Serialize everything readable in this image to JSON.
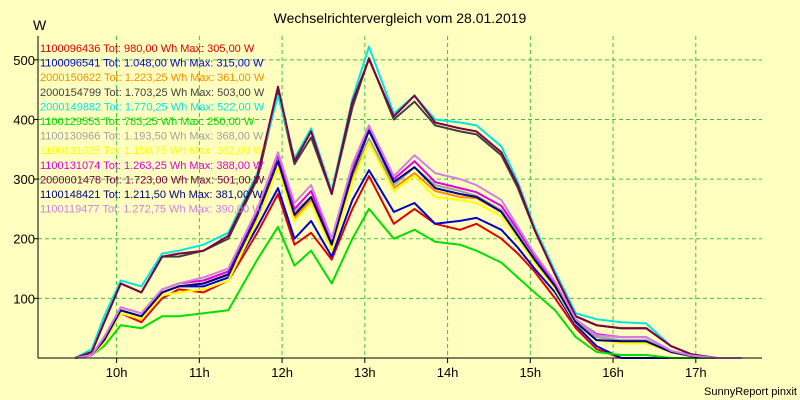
{
  "chart_data": {
    "type": "line",
    "title": "Wechselrichtervergleich vom 28.01.2019",
    "ylabel": "W",
    "xlabel": "",
    "ylim": [
      0,
      540
    ],
    "xlim": [
      9.05,
      17.8
    ],
    "y_ticks": [
      100,
      200,
      300,
      400,
      500
    ],
    "x_ticks": [
      {
        "value": 10,
        "label": "10h"
      },
      {
        "value": 11,
        "label": "11h"
      },
      {
        "value": 12,
        "label": "12h"
      },
      {
        "value": 13,
        "label": "13h"
      },
      {
        "value": 14,
        "label": "14h"
      },
      {
        "value": 15,
        "label": "15h"
      },
      {
        "value": 16,
        "label": "16h"
      },
      {
        "value": 17,
        "label": "17h"
      }
    ],
    "grid": true,
    "legend_position": "top-left",
    "footer": "SunnyReport pinxit",
    "x": [
      9.5,
      9.7,
      9.85,
      10.05,
      10.3,
      10.55,
      10.75,
      11.05,
      11.35,
      11.7,
      11.95,
      12.15,
      12.35,
      12.6,
      12.85,
      13.05,
      13.35,
      13.6,
      13.85,
      14.15,
      14.35,
      14.65,
      14.85,
      15.05,
      15.3,
      15.55,
      15.8,
      16.1,
      16.4,
      16.7,
      16.95,
      17.25,
      17.55
    ],
    "series": [
      {
        "name": "1100096436 Tot: 980,00 Wh Max: 305,00 W",
        "color": "#e00000",
        "values": [
          0,
          5,
          25,
          75,
          60,
          100,
          115,
          110,
          130,
          210,
          275,
          190,
          210,
          165,
          250,
          305,
          225,
          250,
          225,
          215,
          225,
          200,
          175,
          145,
          100,
          50,
          15,
          0,
          0,
          0,
          0,
          0,
          0
        ]
      },
      {
        "name": "1100096541 Tot: 1.048,00 Wh Max: 315,00 W",
        "color": "#0000d0",
        "values": [
          0,
          5,
          30,
          80,
          70,
          110,
          120,
          120,
          135,
          220,
          285,
          200,
          230,
          170,
          265,
          315,
          245,
          260,
          225,
          230,
          235,
          215,
          185,
          150,
          110,
          55,
          20,
          0,
          0,
          0,
          0,
          0,
          0
        ]
      },
      {
        "name": "2000150622 Tot: 1.223,25 Wh Max: 361,00 W",
        "color": "#ff8c00",
        "values": [
          0,
          5,
          30,
          80,
          70,
          110,
          120,
          125,
          140,
          235,
          330,
          235,
          265,
          190,
          305,
          361,
          285,
          310,
          280,
          270,
          268,
          245,
          205,
          165,
          120,
          60,
          30,
          25,
          25,
          10,
          3,
          0,
          0
        ]
      },
      {
        "name": "2000154799 Tot: 1.703,25 Wh Max: 503,00 W",
        "color": "#404040",
        "values": [
          0,
          10,
          60,
          125,
          110,
          170,
          170,
          180,
          200,
          300,
          445,
          325,
          370,
          275,
          420,
          503,
          400,
          430,
          390,
          380,
          375,
          340,
          285,
          215,
          140,
          70,
          55,
          50,
          50,
          20,
          6,
          0,
          0
        ]
      },
      {
        "name": "2000149882 Tot: 1.770,25 Wh Max: 522,00 W",
        "color": "#00e5e5",
        "values": [
          0,
          15,
          70,
          130,
          120,
          175,
          180,
          190,
          210,
          310,
          440,
          335,
          385,
          280,
          435,
          522,
          410,
          440,
          400,
          395,
          390,
          355,
          295,
          220,
          145,
          75,
          65,
          60,
          58,
          20,
          6,
          0,
          0
        ]
      },
      {
        "name": "1100129553 Tot: 783,25 Wh Max: 250,00 W",
        "color": "#00e000",
        "values": [
          0,
          5,
          20,
          55,
          50,
          70,
          70,
          75,
          80,
          165,
          220,
          155,
          180,
          125,
          200,
          250,
          200,
          215,
          195,
          190,
          180,
          160,
          135,
          110,
          80,
          35,
          10,
          5,
          5,
          0,
          0,
          0,
          0
        ]
      },
      {
        "name": "1100130966 Tot: 1.193,50 Wh Max: 368,00 W",
        "color": "#a0a0a0",
        "values": [
          0,
          5,
          30,
          80,
          70,
          110,
          120,
          125,
          140,
          240,
          335,
          245,
          270,
          190,
          310,
          368,
          290,
          320,
          290,
          280,
          272,
          248,
          210,
          168,
          122,
          62,
          35,
          30,
          30,
          10,
          3,
          0,
          0
        ]
      },
      {
        "name": "1100131025 Tot: 1.158,75 Wh Max: 362,00 W",
        "color": "#ffff00",
        "values": [
          0,
          5,
          25,
          75,
          65,
          105,
          110,
          115,
          130,
          230,
          320,
          230,
          260,
          180,
          295,
          362,
          280,
          305,
          270,
          265,
          260,
          238,
          200,
          160,
          115,
          58,
          30,
          25,
          25,
          10,
          3,
          0,
          0
        ]
      },
      {
        "name": "1100131074 Tot: 1.263,25 Wh Max: 388,00 W",
        "color": "#e000e0",
        "values": [
          0,
          5,
          35,
          85,
          75,
          115,
          125,
          130,
          145,
          245,
          340,
          250,
          280,
          195,
          320,
          388,
          300,
          330,
          295,
          285,
          278,
          255,
          215,
          172,
          125,
          64,
          40,
          35,
          35,
          12,
          4,
          0,
          0
        ]
      },
      {
        "name": "2000001478 Tot: 1.723,00 Wh Max: 501,00 W",
        "color": "#800040",
        "values": [
          0,
          10,
          60,
          125,
          110,
          170,
          175,
          180,
          205,
          305,
          455,
          330,
          380,
          275,
          430,
          501,
          405,
          440,
          395,
          385,
          380,
          345,
          290,
          215,
          140,
          70,
          55,
          50,
          50,
          20,
          6,
          0,
          0
        ]
      },
      {
        "name": "1100148421 Tot: 1.211,50 Wh Max: 381,00 W",
        "color": "#000080",
        "values": [
          0,
          5,
          30,
          80,
          70,
          110,
          120,
          125,
          140,
          240,
          330,
          240,
          270,
          190,
          310,
          381,
          295,
          320,
          285,
          275,
          270,
          245,
          205,
          165,
          120,
          60,
          30,
          28,
          28,
          10,
          3,
          0,
          0
        ]
      },
      {
        "name": "1100119477 Tot: 1.272,75 Wh Max: 390,00 W",
        "color": "#d080e0",
        "values": [
          0,
          5,
          35,
          85,
          75,
          115,
          125,
          135,
          150,
          250,
          345,
          260,
          290,
          200,
          325,
          390,
          305,
          340,
          310,
          300,
          290,
          265,
          220,
          175,
          128,
          65,
          38,
          35,
          35,
          12,
          4,
          0,
          0
        ]
      }
    ]
  }
}
